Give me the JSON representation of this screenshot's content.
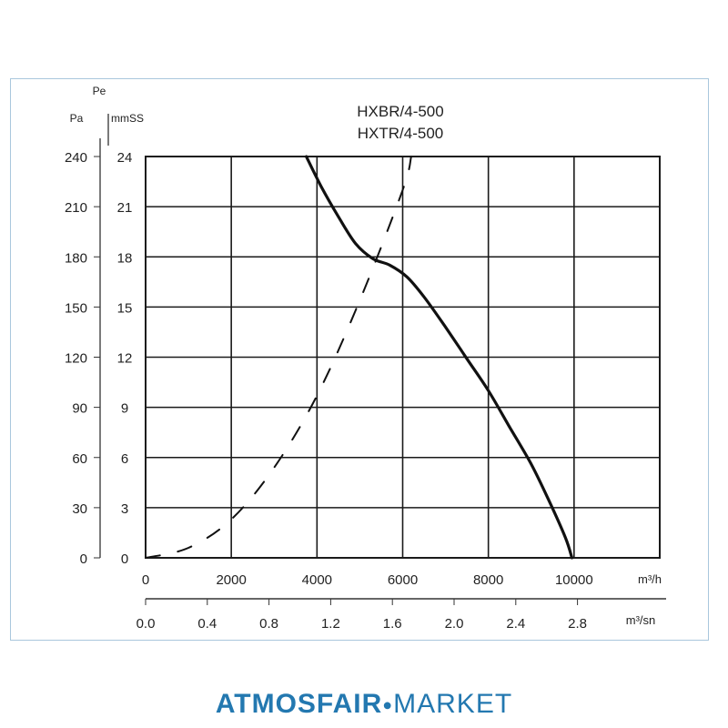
{
  "chart_data": {
    "type": "line",
    "title_lines": [
      "HXBR/4-500",
      "HXTR/4-500"
    ],
    "y_axis_label": "Pe",
    "y_units": [
      "Pa",
      "mmSS"
    ],
    "y_ticks_pa": [
      "240",
      "210",
      "180",
      "150",
      "120",
      "90",
      "60",
      "30",
      "0"
    ],
    "y_ticks_mmss": [
      "24",
      "21",
      "18",
      "15",
      "12",
      "9",
      "6",
      "3",
      "0"
    ],
    "x_unit_m3h": "m³/h",
    "x_ticks_m3h": [
      "0",
      "2000",
      "4000",
      "6000",
      "8000",
      "10000"
    ],
    "x_unit_m3s": "m³/sn",
    "x_ticks_m3s": [
      "0.0",
      "0.4",
      "0.8",
      "1.2",
      "1.6",
      "2.0",
      "2.4",
      "2.8"
    ],
    "xlim": [
      0,
      12000
    ],
    "ylim": [
      0,
      24
    ],
    "grid": true,
    "series": [
      {
        "style": "solid",
        "x": [
          3750,
          4100,
          4500,
          4900,
          5300,
          5700,
          6100,
          6500,
          7000,
          7500,
          8000,
          8500,
          9000,
          9400,
          9800,
          9950
        ],
        "y": [
          24,
          22.2,
          20.4,
          18.8,
          17.9,
          17.5,
          16.8,
          15.6,
          13.8,
          11.9,
          10.0,
          7.8,
          5.6,
          3.5,
          1.2,
          0
        ]
      },
      {
        "style": "dashed",
        "x": [
          0,
          1000,
          2000,
          3000,
          4000,
          5000,
          6000,
          6200
        ],
        "y": [
          0,
          0.6,
          2.3,
          5.4,
          9.7,
          15.4,
          22.0,
          24
        ]
      }
    ]
  },
  "footer": {
    "brand_bold": "ATMOSFAIR",
    "brand_dot": "●",
    "brand_rest": "MARKET"
  }
}
